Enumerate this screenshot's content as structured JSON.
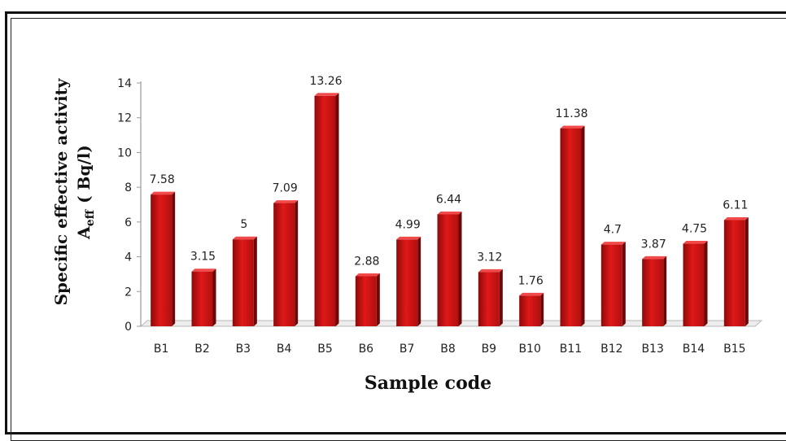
{
  "chart_data": {
    "type": "bar",
    "title": "",
    "xlabel": "Sample code",
    "ylabel_line1": "Specific effective activity",
    "ylabel_line2_main": "A",
    "ylabel_line2_sub": "eff",
    "ylabel_line2_units": "( Bq/l)",
    "categories": [
      "B1",
      "B2",
      "B3",
      "B4",
      "B5",
      "B6",
      "B7",
      "B8",
      "B9",
      "B10",
      "B11",
      "B12",
      "B13",
      "B14",
      "B15"
    ],
    "values": [
      7.58,
      3.15,
      5,
      7.09,
      13.26,
      2.88,
      4.99,
      6.44,
      3.12,
      1.76,
      11.38,
      4.7,
      3.87,
      4.75,
      6.11
    ],
    "value_labels": [
      "7.58",
      "3.15",
      "5",
      "7.09",
      "13.26",
      "2.88",
      "4.99",
      "6.44",
      "3.12",
      "1.76",
      "11.38",
      "4.7",
      "3.87",
      "4.75",
      "6.11"
    ],
    "ylim": [
      0,
      14
    ],
    "yticks": [
      "0",
      "2",
      "4",
      "6",
      "8",
      "10",
      "12",
      "14"
    ],
    "grid": false,
    "legend": "none",
    "bar_color": "#cc1111"
  }
}
